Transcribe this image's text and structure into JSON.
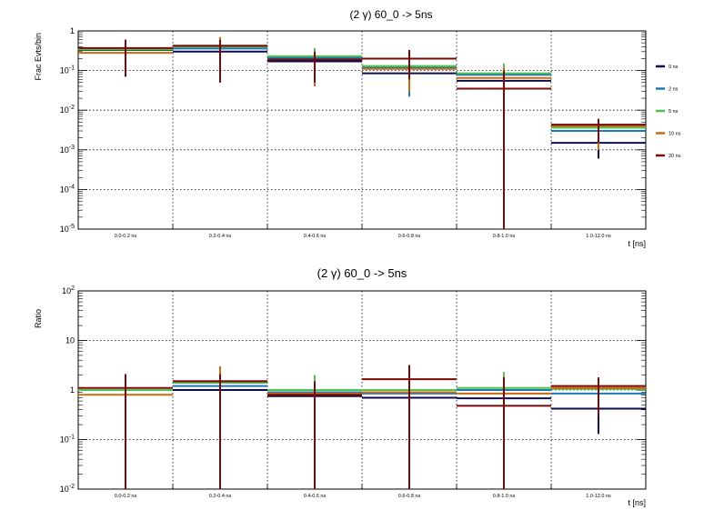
{
  "chart_data": [
    {
      "type": "step",
      "title": "(2 γ) 60_0 -> 5ns",
      "xlabel": "t [ns]",
      "ylabel": "Frac Evts/bin",
      "yscale": "log",
      "ylim": [
        1e-05,
        1
      ],
      "grid": true,
      "legend_position": "right",
      "categories": [
        "0.0-0.2 ns",
        "0.2-0.4 ns",
        "0.4-0.6 ns",
        "0.6-0.8 ns",
        "0.8-1.0 ns",
        "1.0-12.0 ns"
      ],
      "yticks": [
        {
          "value": 1,
          "base": "1",
          "exp": ""
        },
        {
          "value": 0.1,
          "base": "10",
          "exp": "-1"
        },
        {
          "value": 0.01,
          "base": "10",
          "exp": "-2"
        },
        {
          "value": 0.001,
          "base": "10",
          "exp": "-3"
        },
        {
          "value": 0.0001,
          "base": "10",
          "exp": "-4"
        },
        {
          "value": 1e-05,
          "base": "10",
          "exp": "-5"
        }
      ],
      "series": [
        {
          "name": "0 ns",
          "color": "#0d0d4d",
          "values": [
            0.33,
            0.3,
            0.17,
            0.085,
            0.055,
            0.0015
          ],
          "err_low": [
            0.07,
            0.05,
            0.04,
            0.03,
            0.03,
            0.0006
          ],
          "err_high": [
            0.6,
            0.6,
            0.3,
            0.3,
            0.11,
            0.006
          ]
        },
        {
          "name": "2 ns",
          "color": "#1a7ab8",
          "values": [
            0.34,
            0.36,
            0.21,
            0.12,
            0.078,
            0.003
          ],
          "err_low": [
            0.1,
            0.1,
            0.1,
            0.022,
            0.03,
            0.001
          ],
          "err_high": [
            0.6,
            0.6,
            0.33,
            0.3,
            0.12,
            0.006
          ]
        },
        {
          "name": "5 ns",
          "color": "#4fc24f",
          "values": [
            0.34,
            0.4,
            0.23,
            0.13,
            0.085,
            0.0036
          ],
          "err_low": [
            0.1,
            0.1,
            0.1,
            0.03,
            0.03,
            0.001
          ],
          "err_high": [
            0.6,
            0.6,
            0.37,
            0.3,
            0.15,
            0.006
          ]
        },
        {
          "name": "10 ns",
          "color": "#cc6a10",
          "values": [
            0.28,
            0.42,
            0.19,
            0.11,
            0.065,
            0.004
          ],
          "err_low": [
            0.08,
            0.1,
            0.04,
            0.03,
            0.01,
            0.001
          ],
          "err_high": [
            0.6,
            0.7,
            0.3,
            0.3,
            0.12,
            0.006
          ]
        },
        {
          "name": "20 ns",
          "color": "#7a0a0a",
          "values": [
            0.37,
            0.42,
            0.19,
            0.2,
            0.035,
            0.0043
          ],
          "err_low": [
            0.08,
            0.05,
            0.05,
            0.06,
            1e-05,
            0.0015
          ],
          "err_high": [
            0.6,
            0.6,
            0.3,
            0.33,
            0.1,
            0.006
          ]
        }
      ]
    },
    {
      "type": "step",
      "title": "(2 γ) 60_0 -> 5ns",
      "xlabel": "t [ns]",
      "ylabel": "Ratio",
      "yscale": "log",
      "ylim": [
        0.01,
        100
      ],
      "grid": true,
      "categories": [
        "0.0-0.2 ns",
        "0.2-0.4 ns",
        "0.4-0.6 ns",
        "0.6-0.8 ns",
        "0.8-1.0 ns",
        "1.0-12.0 ns"
      ],
      "yticks": [
        {
          "value": 100,
          "base": "10",
          "exp": "2"
        },
        {
          "value": 10,
          "base": "10",
          "exp": ""
        },
        {
          "value": 1,
          "base": "1",
          "exp": ""
        },
        {
          "value": 0.1,
          "base": "10",
          "exp": "-1"
        },
        {
          "value": 0.01,
          "base": "10",
          "exp": "-2"
        }
      ],
      "series": [
        {
          "name": "0 ns",
          "color": "#0d0d4d",
          "values": [
            1.0,
            1.0,
            0.75,
            0.7,
            0.68,
            0.42
          ],
          "err_low": [
            0.2,
            0.3,
            0.2,
            0.3,
            0.3,
            0.13
          ],
          "err_high": [
            1.5,
            1.5,
            1.2,
            1.5,
            1.6,
            1.0
          ]
        },
        {
          "name": "2 ns",
          "color": "#1a7ab8",
          "values": [
            1.0,
            1.2,
            0.9,
            0.85,
            1.0,
            0.85
          ],
          "err_low": [
            0.3,
            0.3,
            0.3,
            0.3,
            0.3,
            0.3
          ],
          "err_high": [
            1.5,
            1.8,
            1.6,
            1.5,
            2.0,
            1.3
          ]
        },
        {
          "name": "5 ns",
          "color": "#4fc24f",
          "values": [
            1.0,
            1.4,
            1.0,
            1.0,
            1.1,
            1.05
          ],
          "err_low": [
            0.3,
            0.3,
            0.3,
            0.3,
            0.3,
            0.3
          ],
          "err_high": [
            1.5,
            2.0,
            2.0,
            1.5,
            2.3,
            1.5
          ]
        },
        {
          "name": "10 ns",
          "color": "#cc6a10",
          "values": [
            0.8,
            1.5,
            0.85,
            0.9,
            0.85,
            1.1
          ],
          "err_low": [
            0.3,
            0.3,
            0.3,
            0.3,
            0.3,
            0.3
          ],
          "err_high": [
            1.5,
            3.0,
            1.5,
            1.5,
            1.8,
            1.5
          ]
        },
        {
          "name": "20 ns",
          "color": "#7a0a0a",
          "values": [
            1.1,
            1.5,
            0.8,
            1.65,
            0.48,
            1.2
          ],
          "err_low": [
            0.01,
            0.01,
            0.01,
            0.01,
            0.01,
            0.3
          ],
          "err_high": [
            2.1,
            2.1,
            1.5,
            3.2,
            1.8,
            1.8
          ]
        }
      ]
    }
  ]
}
